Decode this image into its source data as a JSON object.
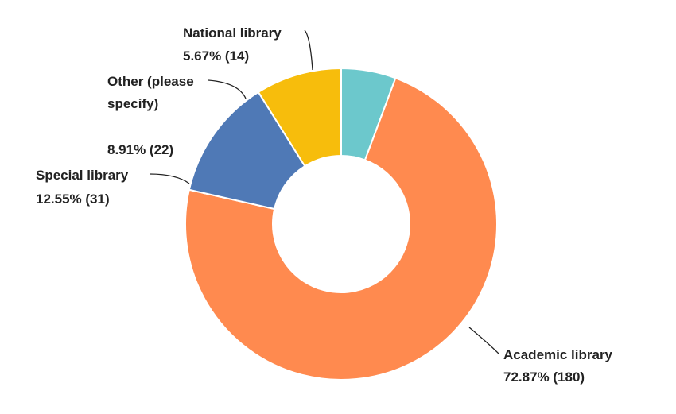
{
  "chart_data": {
    "type": "pie",
    "donut": true,
    "title": "",
    "legend": "none",
    "slices": [
      {
        "name": "National library",
        "percent": "5.67%",
        "count": 14,
        "value": 5.67,
        "color": "#6cc8cc"
      },
      {
        "name": "Academic library",
        "percent": "72.87%",
        "count": 180,
        "value": 72.87,
        "color": "#ff8a4f"
      },
      {
        "name": "Special library",
        "percent": "12.55%",
        "count": 31,
        "value": 12.55,
        "color": "#4f79b6"
      },
      {
        "name": "Other (please specify)",
        "percent": "8.91%",
        "count": 22,
        "value": 8.91,
        "color": "#f7bd0c"
      }
    ],
    "labels": {
      "national_name": "National library",
      "national_value": "5.67% (14)",
      "other_name_1": "Other (please",
      "other_name_2": "specify)",
      "other_value": "8.91% (22)",
      "special_name": "Special library",
      "special_value": "12.55% (31)",
      "academic_name": "Academic library",
      "academic_value": "72.87% (180)"
    }
  }
}
